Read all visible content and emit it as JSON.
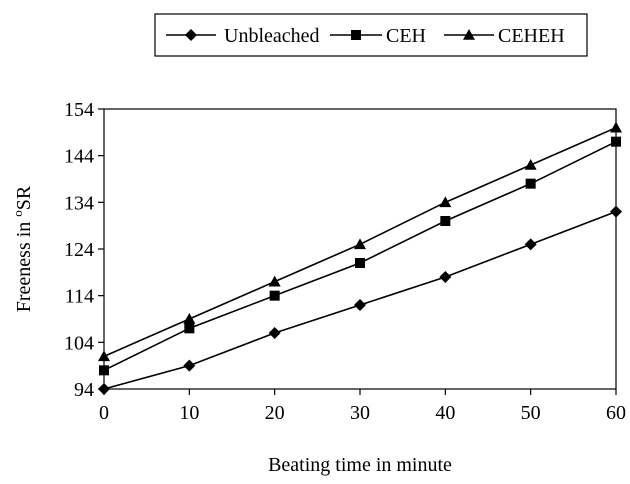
{
  "chart_data": {
    "type": "line",
    "x": [
      0,
      10,
      20,
      30,
      40,
      50,
      60
    ],
    "series": [
      {
        "name": "Unbleached",
        "marker": "diamond",
        "values": [
          94,
          99,
          106,
          112,
          118,
          125,
          132
        ]
      },
      {
        "name": "CEH",
        "marker": "square",
        "values": [
          98,
          107,
          114,
          121,
          130,
          138,
          147
        ]
      },
      {
        "name": "CEHEH",
        "marker": "triangle",
        "values": [
          101,
          109,
          117,
          125,
          134,
          142,
          150
        ]
      }
    ],
    "xlabel": "Beating time in minute",
    "ylabel": {
      "prefix": "Freeness in ",
      "superscript": "o",
      "suffix": "SR"
    },
    "xlim": [
      0,
      60
    ],
    "ylim": [
      94,
      154
    ],
    "xticks": [
      0,
      10,
      20,
      30,
      40,
      50,
      60
    ],
    "yticks": [
      94,
      104,
      114,
      124,
      134,
      144,
      154
    ],
    "grid": false,
    "legend_position": "top",
    "line_color": "#000000"
  }
}
